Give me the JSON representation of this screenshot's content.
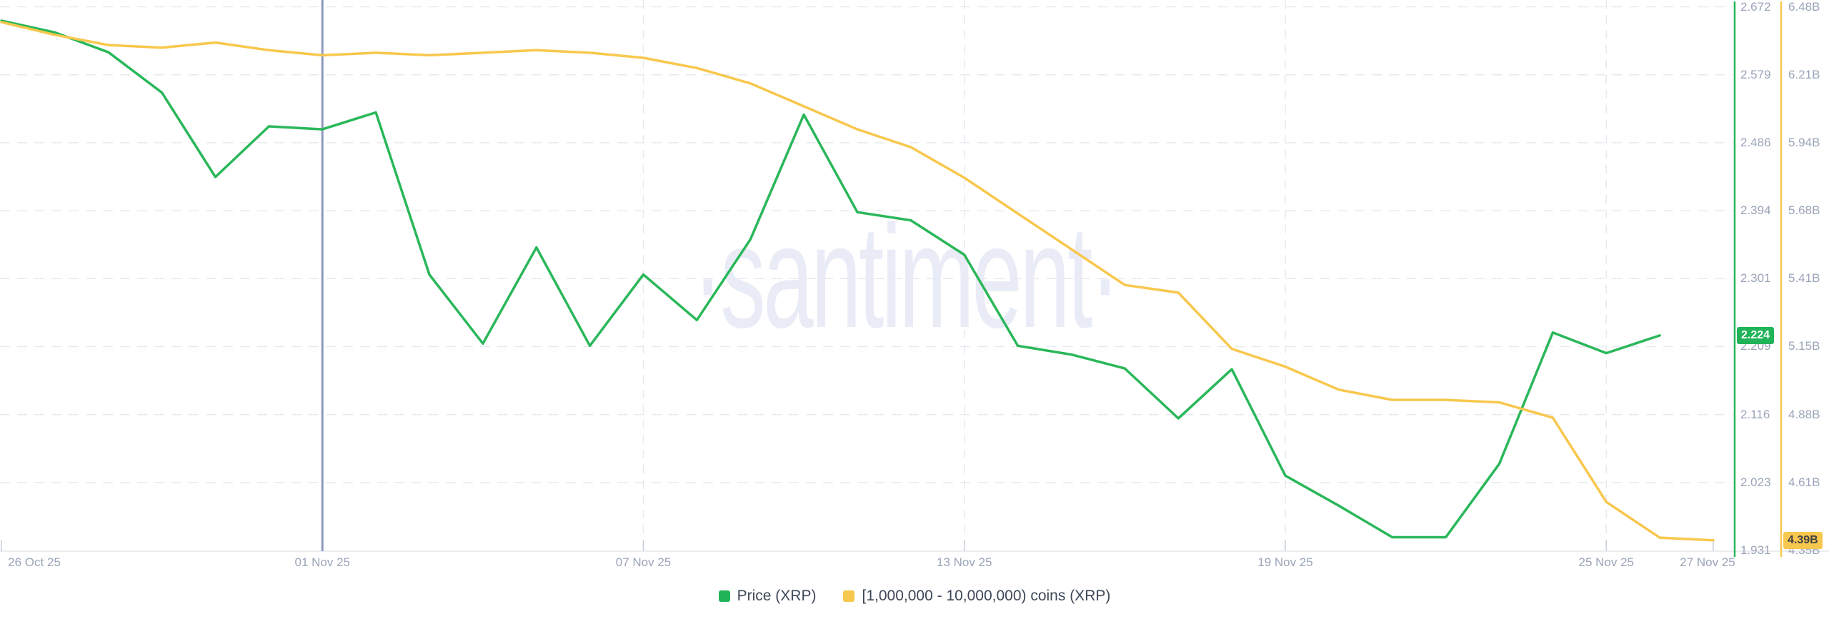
{
  "watermark": "·santiment·",
  "legend": {
    "items": [
      {
        "label": "Price (XRP)",
        "color": "#21b358"
      },
      {
        "label": "[1,000,000 - 10,000,000) coins (XRP)",
        "color": "#f8c74d"
      }
    ]
  },
  "badges": {
    "price": "2.224",
    "coins": "4.39B"
  },
  "colors": {
    "price_line": "#2ab75a",
    "coins_line": "#f8c74d",
    "grid": "#e7e9ef",
    "axis_line": "#e2e5ec",
    "tick_text": "#9aa4b9",
    "marker_line": "#8e98c1",
    "watermark": "#e9ecf6"
  },
  "chart_data": {
    "type": "line",
    "title": "",
    "xlabel": "",
    "ylabel_right_inner": "Price (XRP)",
    "ylabel_right_outer": "[1,000,000 - 10,000,000) coins (XRP)",
    "x_axis": {
      "start_label": "26 Oct 25",
      "end_label": "27 Nov 25",
      "tick_labels": [
        "26 Oct 25",
        "01 Nov 25",
        "07 Nov 25",
        "13 Nov 25",
        "19 Nov 25",
        "25 Nov 25",
        "27 Nov 25"
      ],
      "tick_days": [
        0,
        6,
        12,
        18,
        24,
        30,
        32
      ],
      "days_total": 32,
      "marker_line_day": 6,
      "vertical_grid_days": [
        6,
        12,
        18,
        24,
        30
      ]
    },
    "y_axis_price": {
      "tick_labels": [
        "2.672",
        "2.579",
        "2.486",
        "2.394",
        "2.301",
        "2.209",
        "2.116",
        "2.023",
        "1.931"
      ],
      "max": 2.672,
      "min": 1.931,
      "last_value": 2.224
    },
    "y_axis_coins": {
      "tick_labels": [
        "6.48B",
        "6.21B",
        "5.94B",
        "5.68B",
        "5.41B",
        "5.15B",
        "4.88B",
        "4.61B",
        "4.35B"
      ],
      "max_b": 6.48,
      "min_b": 4.35,
      "last_value_b": 4.39
    },
    "grid": true,
    "legend_position": "bottom",
    "series": [
      {
        "name": "Price (XRP)",
        "axis": "price",
        "color": "#2ab75a",
        "start_day": 0,
        "values": [
          2.653,
          2.637,
          2.61,
          2.555,
          2.44,
          2.509,
          2.505,
          2.528,
          2.307,
          2.213,
          2.344,
          2.21,
          2.307,
          2.245,
          2.355,
          2.525,
          2.392,
          2.381,
          2.334,
          2.21,
          2.198,
          2.179,
          2.111,
          2.178,
          2.033,
          1.992,
          1.949,
          1.949,
          2.049,
          2.228,
          2.2,
          2.224
        ]
      },
      {
        "name": "[1,000,000 - 10,000,000) coins (XRP)",
        "axis": "coins",
        "color": "#f8c74d",
        "start_day": 0,
        "values": [
          6.42,
          6.37,
          6.33,
          6.32,
          6.34,
          6.31,
          6.29,
          6.3,
          6.29,
          6.3,
          6.31,
          6.3,
          6.28,
          6.24,
          6.18,
          6.09,
          6.0,
          5.93,
          5.81,
          5.67,
          5.53,
          5.39,
          5.36,
          5.14,
          5.07,
          4.98,
          4.94,
          4.94,
          4.93,
          4.87,
          4.54,
          4.4,
          4.39
        ]
      }
    ]
  }
}
